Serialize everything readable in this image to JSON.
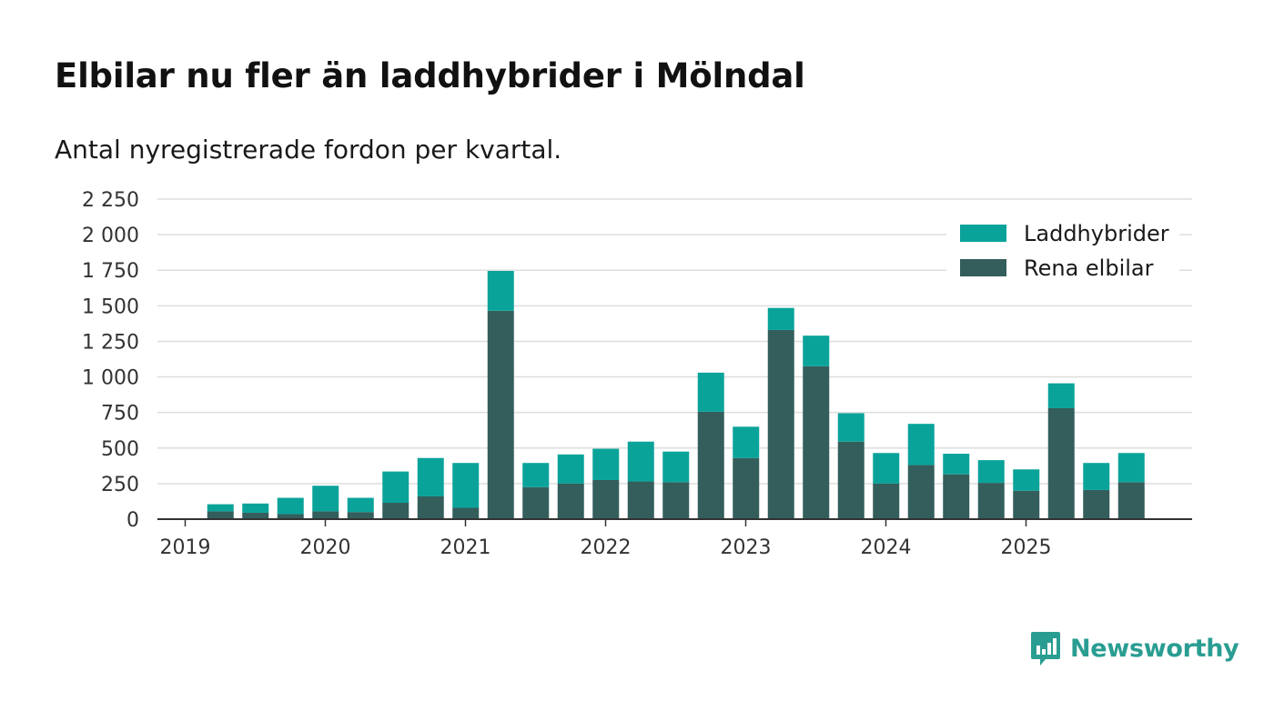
{
  "title": "Elbilar nu fler än laddhybrider i Mölndal",
  "subtitle": "Antal nyregistrerade fordon per kvartal.",
  "brand": {
    "name": "Newsworthy",
    "color": "#2a9d92",
    "icon": "newsworthy-logo-icon"
  },
  "colors": {
    "laddhybrider": "#0aa39a",
    "rena_elbilar": "#335e5c",
    "grid": "#dedede",
    "axis": "#333333"
  },
  "chart_data": {
    "type": "bar",
    "stacked": true,
    "title": "Elbilar nu fler än laddhybrider i Mölndal",
    "subtitle": "Antal nyregistrerade fordon per kvartal.",
    "xlabel": "",
    "ylabel": "",
    "ylim": [
      0,
      2250
    ],
    "yticks": [
      0,
      250,
      500,
      750,
      1000,
      1250,
      1500,
      1750,
      2000,
      2250
    ],
    "ytick_labels": [
      "0",
      "250",
      "500",
      "750",
      "1 000",
      "1 250",
      "1 500",
      "1 750",
      "2 000",
      "2 250"
    ],
    "xticks": [
      {
        "label": "2019",
        "at": "2019-Q1"
      },
      {
        "label": "2020",
        "at": "2020-Q1"
      },
      {
        "label": "2021",
        "at": "2021-Q1"
      },
      {
        "label": "2022",
        "at": "2022-Q1"
      },
      {
        "label": "2023",
        "at": "2023-Q1"
      },
      {
        "label": "2024",
        "at": "2024-Q1"
      },
      {
        "label": "2025",
        "at": "2025-Q1"
      }
    ],
    "grid": true,
    "legend_position": "top-right",
    "categories": [
      "2019-Q1",
      "2019-Q2",
      "2019-Q3",
      "2019-Q4",
      "2020-Q1",
      "2020-Q2",
      "2020-Q3",
      "2020-Q4",
      "2021-Q1",
      "2021-Q2",
      "2021-Q3",
      "2021-Q4",
      "2022-Q1",
      "2022-Q2",
      "2022-Q3",
      "2022-Q4",
      "2023-Q1",
      "2023-Q2",
      "2023-Q3",
      "2023-Q4",
      "2024-Q1",
      "2024-Q2",
      "2024-Q3",
      "2024-Q4",
      "2025-Q1",
      "2025-Q2",
      "2025-Q3",
      "2025-Q4"
    ],
    "series": [
      {
        "name": "Rena elbilar",
        "key": "rena_elbilar",
        "values": [
          0,
          55,
          45,
          35,
          55,
          50,
          115,
          160,
          80,
          1465,
          225,
          250,
          275,
          265,
          260,
          755,
          430,
          1330,
          1075,
          545,
          250,
          380,
          315,
          255,
          200,
          780,
          205,
          260
        ]
      },
      {
        "name": "Laddhybrider",
        "key": "laddhybrider",
        "values": [
          0,
          50,
          65,
          115,
          180,
          100,
          220,
          270,
          315,
          280,
          170,
          205,
          220,
          280,
          215,
          275,
          220,
          155,
          215,
          200,
          215,
          290,
          145,
          160,
          150,
          175,
          190,
          205
        ]
      }
    ],
    "legend": [
      {
        "name": "Laddhybrider",
        "key": "laddhybrider"
      },
      {
        "name": "Rena elbilar",
        "key": "rena_elbilar"
      }
    ]
  }
}
